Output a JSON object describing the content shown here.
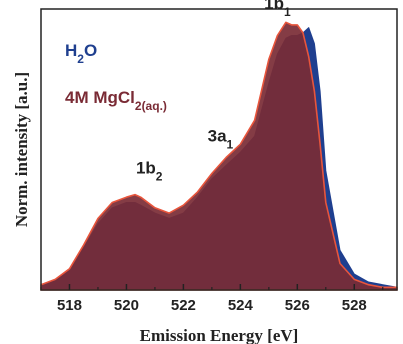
{
  "chart_data": {
    "type": "area",
    "xlabel": "Emission Energy [eV]",
    "ylabel": "Norm. intensity [a.u.]",
    "xlim": [
      517.0,
      529.5
    ],
    "ylim": [
      0.0,
      1.06
    ],
    "xticks": [
      518,
      520,
      522,
      524,
      526,
      528
    ],
    "x_tick_labels": [
      "518",
      "520",
      "522",
      "524",
      "526",
      "528"
    ],
    "grid": false,
    "legend_position": "top-left",
    "series": [
      {
        "name": "H₂O",
        "label_main": "H",
        "label_sub": "2",
        "label_tail": "O",
        "color": "#1f3f8f",
        "x": [
          517.0,
          517.5,
          518.0,
          518.5,
          519.0,
          519.5,
          520.0,
          520.3,
          520.5,
          521.0,
          521.5,
          522.0,
          522.5,
          523.0,
          523.5,
          524.0,
          524.5,
          525.0,
          525.3,
          525.6,
          525.8,
          526.0,
          526.2,
          526.4,
          526.6,
          526.8,
          527.0,
          527.5,
          528.0,
          528.5,
          529.0,
          529.5
        ],
        "y": [
          0.02,
          0.04,
          0.08,
          0.16,
          0.25,
          0.31,
          0.33,
          0.33,
          0.32,
          0.29,
          0.27,
          0.29,
          0.35,
          0.42,
          0.47,
          0.52,
          0.58,
          0.78,
          0.89,
          0.95,
          0.96,
          0.96,
          0.97,
          0.99,
          0.93,
          0.75,
          0.45,
          0.15,
          0.06,
          0.03,
          0.02,
          0.01
        ]
      },
      {
        "name": "4M MgCl₂(aq.)",
        "label_main": "4M MgCl",
        "label_sub": "2(aq.)",
        "label_tail": "",
        "color": "#7a2b35",
        "line_color": "#e8553c",
        "fill_color": "#7a2b35",
        "x": [
          517.0,
          517.5,
          518.0,
          518.5,
          519.0,
          519.5,
          520.0,
          520.3,
          520.5,
          521.0,
          521.5,
          522.0,
          522.5,
          523.0,
          523.5,
          524.0,
          524.5,
          525.0,
          525.3,
          525.6,
          525.8,
          526.0,
          526.2,
          526.4,
          526.6,
          526.8,
          527.0,
          527.5,
          528.0,
          528.5,
          529.0,
          529.5
        ],
        "y": [
          0.02,
          0.04,
          0.08,
          0.17,
          0.27,
          0.33,
          0.35,
          0.36,
          0.35,
          0.31,
          0.29,
          0.32,
          0.37,
          0.44,
          0.5,
          0.55,
          0.64,
          0.87,
          0.96,
          1.01,
          1.0,
          1.0,
          0.97,
          0.88,
          0.75,
          0.55,
          0.33,
          0.1,
          0.04,
          0.02,
          0.01,
          0.01
        ]
      }
    ],
    "annotations": [
      {
        "label_main": "1b",
        "label_sub": "2",
        "x": 520.8,
        "y": 0.44
      },
      {
        "label_main": "3a",
        "label_sub": "1",
        "x": 523.3,
        "y": 0.56
      },
      {
        "label_main": "1b",
        "label_sub": "1",
        "x": 525.3,
        "y": 1.06
      }
    ]
  }
}
